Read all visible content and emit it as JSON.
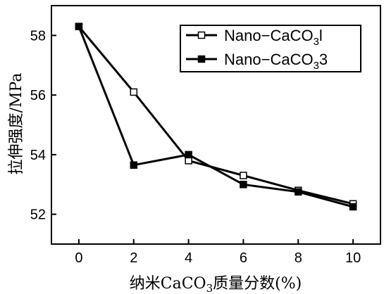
{
  "chart_data": {
    "type": "line",
    "x": [
      0,
      2,
      4,
      6,
      8,
      10
    ],
    "series": [
      {
        "name": "Nano−CaCO₃l",
        "name_parts": [
          "Nano−CaCO",
          "3",
          "l"
        ],
        "marker": "open-square",
        "values": [
          58.3,
          56.1,
          53.8,
          53.3,
          52.8,
          52.35
        ]
      },
      {
        "name": "Nano−CaCO₃ 3",
        "name_parts": [
          "Nano−CaCO",
          "3",
          "3"
        ],
        "marker": "filled-square",
        "values": [
          58.3,
          53.65,
          54.0,
          53.0,
          52.75,
          52.25
        ]
      }
    ],
    "xticks": [
      0,
      2,
      4,
      6,
      8,
      10
    ],
    "yticks": [
      52,
      54,
      56,
      58
    ],
    "xlim": [
      -1,
      11
    ],
    "ylim": [
      51.0,
      59.0
    ],
    "xlabel_parts": [
      "纳米CaCO",
      "3",
      "质量分数(%)"
    ],
    "ylabel": "拉伸强度/MPa",
    "legend_position": "top-right",
    "line_color": "#000000",
    "grid": false
  }
}
